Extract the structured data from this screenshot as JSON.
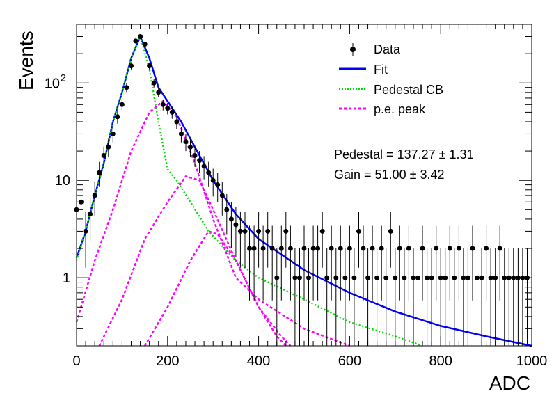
{
  "chart_data": {
    "type": "scatter",
    "xlabel": "ADC",
    "ylabel": "Events",
    "xlim": [
      0,
      1000
    ],
    "ylim": [
      0.2,
      400
    ],
    "yscale": "log",
    "x_ticks": [
      0,
      200,
      400,
      600,
      800,
      1000
    ],
    "y_ticks": [
      {
        "value": 1,
        "label": "1"
      },
      {
        "value": 10,
        "label": "10"
      },
      {
        "value": 100,
        "label": "10",
        "exp": "2"
      }
    ],
    "legend": {
      "placement": "top-right",
      "entries": [
        {
          "label": "Data",
          "style": "marker",
          "color": "#000000"
        },
        {
          "label": "Fit",
          "style": "solid",
          "color": "#0000ff"
        },
        {
          "label": "Pedestal CB",
          "style": "dotted",
          "color": "#00dd00"
        },
        {
          "label": "p.e. peak",
          "style": "dashed",
          "color": "#ff00ff"
        }
      ]
    },
    "annotations": [
      {
        "text": "Pedestal = 137.27",
        "pm": "±",
        "err": "1.31"
      },
      {
        "text": "Gain = 51.00",
        "pm": "±",
        "err": "3.42"
      }
    ],
    "fit_params": {
      "pedestal": 137.27,
      "pedestal_err": 1.31,
      "gain": 51.0,
      "gain_err": 3.42
    },
    "series": [
      {
        "name": "Data",
        "kind": "points",
        "points": [
          [
            0,
            5
          ],
          [
            10,
            6
          ],
          [
            20,
            3
          ],
          [
            30,
            4.5
          ],
          [
            40,
            7
          ],
          [
            50,
            12
          ],
          [
            60,
            18
          ],
          [
            70,
            22
          ],
          [
            80,
            30
          ],
          [
            90,
            45
          ],
          [
            100,
            60
          ],
          [
            110,
            90
          ],
          [
            120,
            150
          ],
          [
            130,
            270
          ],
          [
            140,
            300
          ],
          [
            150,
            250
          ],
          [
            160,
            150
          ],
          [
            170,
            100
          ],
          [
            180,
            80
          ],
          [
            190,
            60
          ],
          [
            200,
            55
          ],
          [
            210,
            50
          ],
          [
            220,
            40
          ],
          [
            230,
            30
          ],
          [
            240,
            25
          ],
          [
            250,
            22
          ],
          [
            260,
            18
          ],
          [
            270,
            16
          ],
          [
            280,
            14
          ],
          [
            290,
            12
          ],
          [
            300,
            10
          ],
          [
            310,
            9
          ],
          [
            320,
            7
          ],
          [
            330,
            5
          ],
          [
            340,
            4
          ],
          [
            350,
            3.5
          ],
          [
            360,
            3
          ],
          [
            370,
            3
          ],
          [
            380,
            2
          ],
          [
            390,
            2
          ],
          [
            400,
            3
          ],
          [
            410,
            2
          ],
          [
            420,
            3
          ],
          [
            430,
            2
          ],
          [
            440,
            1
          ],
          [
            450,
            2
          ],
          [
            460,
            3
          ],
          [
            470,
            2
          ],
          [
            480,
            1
          ],
          [
            490,
            1
          ],
          [
            500,
            2
          ],
          [
            510,
            1
          ],
          [
            520,
            2
          ],
          [
            530,
            2
          ],
          [
            540,
            3
          ],
          [
            550,
            1
          ],
          [
            560,
            2
          ],
          [
            570,
            1
          ],
          [
            580,
            2
          ],
          [
            590,
            1
          ],
          [
            600,
            2
          ],
          [
            610,
            1
          ],
          [
            620,
            3
          ],
          [
            630,
            2
          ],
          [
            640,
            1
          ],
          [
            650,
            2
          ],
          [
            660,
            1
          ],
          [
            670,
            2
          ],
          [
            680,
            1
          ],
          [
            690,
            3
          ],
          [
            700,
            1
          ],
          [
            710,
            2
          ],
          [
            720,
            1
          ],
          [
            730,
            2
          ],
          [
            740,
            1
          ],
          [
            750,
            1
          ],
          [
            760,
            2
          ],
          [
            770,
            1
          ],
          [
            780,
            1
          ],
          [
            790,
            2
          ],
          [
            800,
            1
          ],
          [
            810,
            1
          ],
          [
            820,
            2
          ],
          [
            830,
            1
          ],
          [
            840,
            2
          ],
          [
            850,
            1
          ],
          [
            860,
            1
          ],
          [
            870,
            2
          ],
          [
            880,
            1
          ],
          [
            890,
            1
          ],
          [
            900,
            2
          ],
          [
            910,
            1
          ],
          [
            920,
            1
          ],
          [
            930,
            2
          ],
          [
            940,
            1
          ],
          [
            950,
            1
          ],
          [
            960,
            1
          ],
          [
            970,
            1
          ],
          [
            980,
            1
          ],
          [
            990,
            1
          ]
        ]
      },
      {
        "name": "Fit",
        "kind": "line",
        "points": [
          [
            0,
            1.6
          ],
          [
            20,
            3.0
          ],
          [
            40,
            7.0
          ],
          [
            60,
            15
          ],
          [
            80,
            40
          ],
          [
            100,
            80
          ],
          [
            120,
            180
          ],
          [
            140,
            300
          ],
          [
            160,
            180
          ],
          [
            180,
            90
          ],
          [
            200,
            65
          ],
          [
            230,
            40
          ],
          [
            260,
            22
          ],
          [
            300,
            10
          ],
          [
            350,
            4.5
          ],
          [
            400,
            2.5
          ],
          [
            500,
            1.2
          ],
          [
            600,
            0.7
          ],
          [
            700,
            0.45
          ],
          [
            800,
            0.32
          ],
          [
            900,
            0.25
          ],
          [
            1000,
            0.2
          ]
        ]
      },
      {
        "name": "Pedestal CB",
        "kind": "line",
        "points": [
          [
            0,
            1.5
          ],
          [
            20,
            3.0
          ],
          [
            40,
            7.0
          ],
          [
            60,
            15
          ],
          [
            80,
            40
          ],
          [
            100,
            80
          ],
          [
            120,
            180
          ],
          [
            140,
            300
          ],
          [
            160,
            140
          ],
          [
            180,
            40
          ],
          [
            200,
            13
          ],
          [
            220,
            10
          ],
          [
            250,
            6
          ],
          [
            290,
            3
          ],
          [
            350,
            1.5
          ],
          [
            400,
            1.0
          ],
          [
            500,
            0.6
          ],
          [
            600,
            0.35
          ],
          [
            700,
            0.25
          ],
          [
            760,
            0.2
          ]
        ]
      },
      {
        "name": "p.e. peak",
        "kind": "line",
        "points": [
          [
            0,
            0.35
          ],
          [
            40,
            1.5
          ],
          [
            80,
            5
          ],
          [
            120,
            20
          ],
          [
            160,
            50
          ],
          [
            190,
            65
          ],
          [
            220,
            45
          ],
          [
            260,
            15
          ],
          [
            300,
            4
          ],
          [
            350,
            1
          ],
          [
            400,
            0.6
          ],
          [
            500,
            0.3
          ],
          [
            600,
            0.2
          ]
        ]
      },
      {
        "name": "p.e. peak",
        "kind": "line",
        "points": [
          [
            50,
            0.2
          ],
          [
            100,
            0.6
          ],
          [
            150,
            2.5
          ],
          [
            200,
            6.0
          ],
          [
            240,
            11
          ],
          [
            270,
            10
          ],
          [
            300,
            5
          ],
          [
            350,
            1.5
          ],
          [
            400,
            0.5
          ],
          [
            440,
            0.25
          ],
          [
            460,
            0.2
          ]
        ]
      },
      {
        "name": "p.e. peak",
        "kind": "line",
        "points": [
          [
            150,
            0.2
          ],
          [
            200,
            0.5
          ],
          [
            250,
            1.5
          ],
          [
            290,
            3.0
          ],
          [
            310,
            2.8
          ],
          [
            350,
            1.5
          ],
          [
            400,
            0.5
          ],
          [
            450,
            0.25
          ],
          [
            470,
            0.2
          ]
        ]
      }
    ]
  }
}
